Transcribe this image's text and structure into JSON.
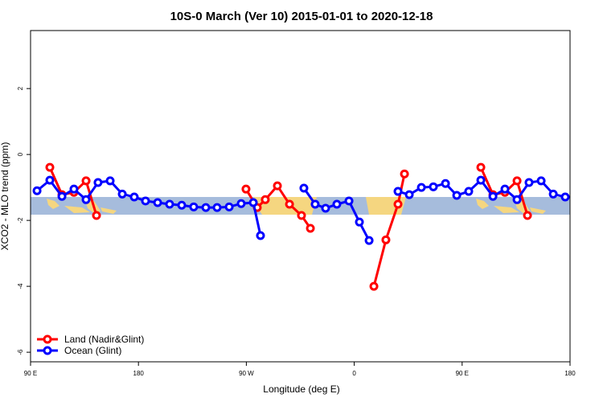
{
  "chart_data": {
    "type": "line",
    "title": "10S-0 March (Ver 10)   2015-01-01 to 2020-12-18",
    "x_label": "Longitude (deg E)",
    "y_label": "XCO2 - MLO trend (ppm)",
    "xlim": [
      90,
      540
    ],
    "xticks": [
      {
        "value": 90,
        "label": "90 E"
      },
      {
        "value": 180,
        "label": "180"
      },
      {
        "value": 270,
        "label": "90 W"
      },
      {
        "value": 360,
        "label": "0"
      },
      {
        "value": 450,
        "label": "90 E"
      },
      {
        "value": 540,
        "label": "180"
      }
    ],
    "ylim": [
      -6.29,
      3.76
    ],
    "yticks": [
      -6,
      -4,
      -2,
      0,
      2
    ],
    "legend": "bottomleft",
    "series": [
      {
        "name": "Land (Nadir&Glint)",
        "color": "#ff0000",
        "x": [
          106.1,
          116.2,
          126.2,
          136.3,
          145.0,
          null,
          269.7,
          279.1,
          285.8,
          295.9,
          306.0,
          316.0,
          323.4,
          null,
          376.4,
          386.4,
          396.5,
          401.9,
          null,
          465.6,
          475.7,
          485.7,
          495.8,
          504.5
        ],
        "values": [
          -0.39,
          -1.22,
          -1.15,
          -0.8,
          -1.85,
          null,
          -1.05,
          -1.61,
          -1.37,
          -0.95,
          -1.51,
          -1.85,
          -2.24,
          null,
          -4.0,
          -2.59,
          -1.51,
          -0.59,
          null,
          -0.39,
          -1.22,
          -1.15,
          -0.8,
          -1.85
        ]
      },
      {
        "name": "Ocean (Glint)",
        "color": "#0000ff",
        "x": [
          95.4,
          106.1,
          116.2,
          126.2,
          136.3,
          146.3,
          156.4,
          166.5,
          176.5,
          185.9,
          196.0,
          206.0,
          216.1,
          226.1,
          236.2,
          245.6,
          255.7,
          265.7,
          275.8,
          281.8,
          null,
          318.0,
          327.4,
          336.1,
          345.5,
          355.6,
          364.3,
          372.4,
          null,
          396.5,
          405.9,
          416.0,
          426.0,
          436.1,
          445.5,
          455.5,
          465.6,
          475.7,
          485.7,
          495.8,
          505.8,
          515.9,
          526.0,
          536.0
        ],
        "values": [
          -1.1,
          -0.78,
          -1.27,
          -1.05,
          -1.37,
          -0.85,
          -0.8,
          -1.2,
          -1.29,
          -1.41,
          -1.46,
          -1.51,
          -1.54,
          -1.59,
          -1.61,
          -1.61,
          -1.59,
          -1.49,
          -1.46,
          -2.46,
          null,
          -1.02,
          -1.51,
          -1.63,
          -1.51,
          -1.41,
          -2.05,
          -2.61,
          null,
          -1.12,
          -1.22,
          -1.0,
          -0.98,
          -0.88,
          -1.24,
          -1.12,
          -0.78,
          -1.27,
          -1.05,
          -1.37,
          -0.85,
          -0.8,
          -1.2,
          -1.29
        ]
      }
    ]
  }
}
